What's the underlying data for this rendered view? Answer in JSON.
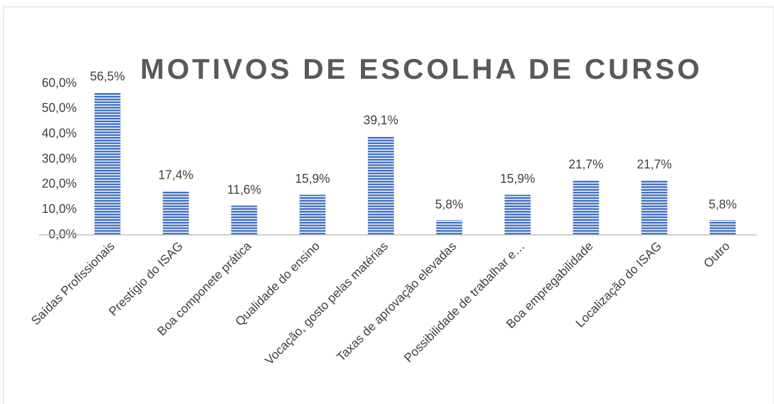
{
  "chart_data": {
    "type": "bar",
    "title": "MOTIVOS DE ESCOLHA DE CURSO",
    "categories": [
      "Saídas Profissionais",
      "Prestígio do ISAG",
      "Boa componete prática",
      "Qualidade do ensino",
      "Vocação, gosto pelas matérias",
      "Taxas de aprovação elevadas",
      "Possibilidade de trabalhar e…",
      "Boa empregabilidade",
      "Localização do ISAG",
      "Outro"
    ],
    "values": [
      56.5,
      17.4,
      11.6,
      15.9,
      39.1,
      5.8,
      15.9,
      21.7,
      21.7,
      5.8
    ],
    "value_labels": [
      "56,5%",
      "17,4%",
      "11,6%",
      "15,9%",
      "39,1%",
      "5,8%",
      "15,9%",
      "21,7%",
      "21,7%",
      "5,8%"
    ],
    "color": "#4472c4",
    "ylim": [
      0,
      60
    ],
    "yticks": [
      {
        "value": 0,
        "label": "0,0%"
      },
      {
        "value": 10,
        "label": "10,0%"
      },
      {
        "value": 20,
        "label": "20,0%"
      },
      {
        "value": 30,
        "label": "30,0%"
      },
      {
        "value": 40,
        "label": "40,0%"
      },
      {
        "value": 50,
        "label": "50,0%"
      },
      {
        "value": 60,
        "label": "60,0%"
      }
    ],
    "grid": false
  }
}
